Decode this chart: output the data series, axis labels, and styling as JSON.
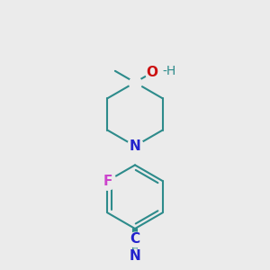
{
  "background_color": "#ebebeb",
  "bond_color": "#2d8b8b",
  "N_color": "#2323cc",
  "O_color": "#cc1111",
  "F_color": "#cc44cc",
  "C_color": "#2323cc",
  "H_color": "#2d8b8b",
  "line_width": 1.5,
  "figsize": [
    3.0,
    3.0
  ],
  "dpi": 100,
  "xlim": [
    -1.8,
    1.8
  ],
  "ylim": [
    -3.2,
    2.8
  ]
}
